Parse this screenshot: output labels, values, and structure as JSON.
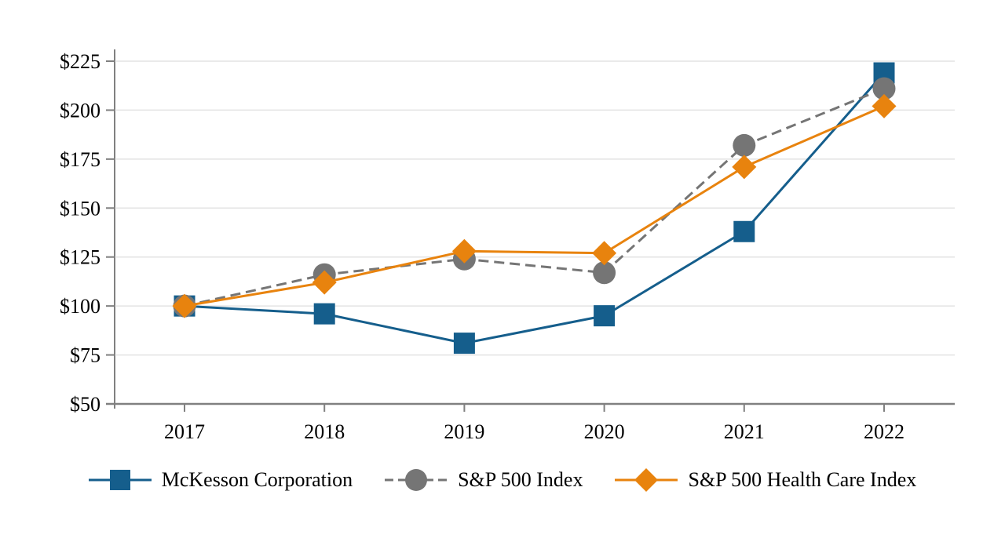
{
  "chart_data": {
    "type": "line",
    "categories": [
      "2017",
      "2018",
      "2019",
      "2020",
      "2021",
      "2022"
    ],
    "series": [
      {
        "name": "McKesson Corporation",
        "marker": "square",
        "line_style": "solid",
        "color": "#155E8C",
        "values": [
          100,
          96,
          81,
          95,
          138,
          219
        ]
      },
      {
        "name": "S&P 500 Index",
        "marker": "circle",
        "line_style": "dashed",
        "color": "#757575",
        "values": [
          100,
          116,
          124,
          117,
          182,
          211
        ]
      },
      {
        "name": "S&P 500 Health Care Index",
        "marker": "diamond",
        "line_style": "solid",
        "color": "#E8830E",
        "values": [
          100,
          112,
          128,
          127,
          171,
          202
        ]
      }
    ],
    "ylim": [
      50,
      225
    ],
    "ytick_step": 25,
    "ytick_labels": [
      "$50",
      "$75",
      "$100",
      "$125",
      "$150",
      "$175",
      "$200",
      "$225"
    ],
    "grid": true,
    "legend_position": "bottom"
  },
  "colors": {
    "background": "#FFFFFF",
    "gridline": "#E3E3E3",
    "axis": "#808080",
    "text": "#000000"
  }
}
